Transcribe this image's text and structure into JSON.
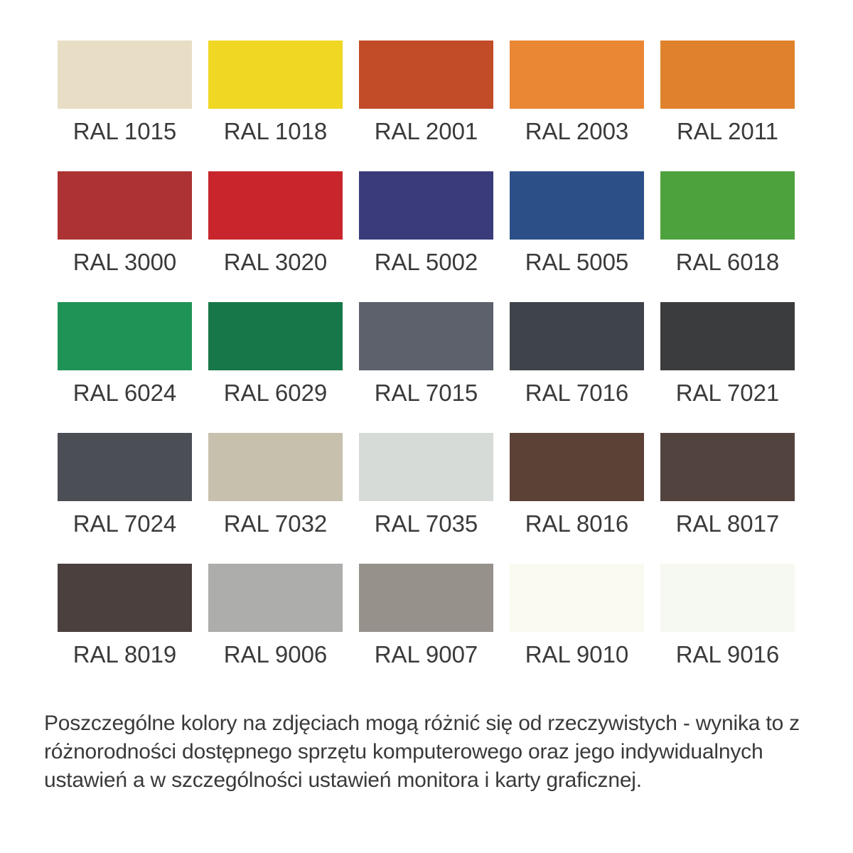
{
  "page": {
    "background_color": "#ffffff",
    "text_color": "#3a3a3a"
  },
  "swatches": [
    {
      "code": "RAL 1015",
      "hex": "#E7DEC5"
    },
    {
      "code": "RAL 1018",
      "hex": "#F0D724"
    },
    {
      "code": "RAL 2001",
      "hex": "#C24B28"
    },
    {
      "code": "RAL 2003",
      "hex": "#EA8735"
    },
    {
      "code": "RAL 2011",
      "hex": "#E0822C"
    },
    {
      "code": "RAL 3000",
      "hex": "#AC3233"
    },
    {
      "code": "RAL 3020",
      "hex": "#C8262C"
    },
    {
      "code": "RAL 5002",
      "hex": "#3A3B7B"
    },
    {
      "code": "RAL 5005",
      "hex": "#2C4F87"
    },
    {
      "code": "RAL 6018",
      "hex": "#4EA23E"
    },
    {
      "code": "RAL 6024",
      "hex": "#1F9356"
    },
    {
      "code": "RAL 6029",
      "hex": "#187749"
    },
    {
      "code": "RAL 7015",
      "hex": "#5C616B"
    },
    {
      "code": "RAL 7016",
      "hex": "#3F444A"
    },
    {
      "code": "RAL 7021",
      "hex": "#3B3C3E"
    },
    {
      "code": "RAL 7024",
      "hex": "#4C4E56"
    },
    {
      "code": "RAL 7032",
      "hex": "#C6C0AD"
    },
    {
      "code": "RAL 7035",
      "hex": "#D7DBD7"
    },
    {
      "code": "RAL 8016",
      "hex": "#5C4137"
    },
    {
      "code": "RAL 8017",
      "hex": "#53433E"
    },
    {
      "code": "RAL 8019",
      "hex": "#4B403E"
    },
    {
      "code": "RAL 9006",
      "hex": "#ADADAB"
    },
    {
      "code": "RAL 9007",
      "hex": "#96918B"
    },
    {
      "code": "RAL 9010",
      "hex": "#FAFAF1"
    },
    {
      "code": "RAL 9016",
      "hex": "#F6F9F1"
    }
  ],
  "disclaimer": {
    "full_text": "Poszczególne kolory na zdjęciach mogą różnić się od rzeczywistych - wynika to z różnorodności dostępnego sprzętu komputerowego oraz jego indywidualnych ustawień a w szczególności ustawień monitora i karty graficznej.",
    "lines": [
      "Poszczególne kolory na zdjęciach mogą różnić się od rzeczywistych - wynika to z",
      "różnorodności dostępnego sprzętu komputerowego oraz jego indywidualnych",
      "ustawień a w szczególności ustawień monitora i karty graficznej."
    ]
  }
}
